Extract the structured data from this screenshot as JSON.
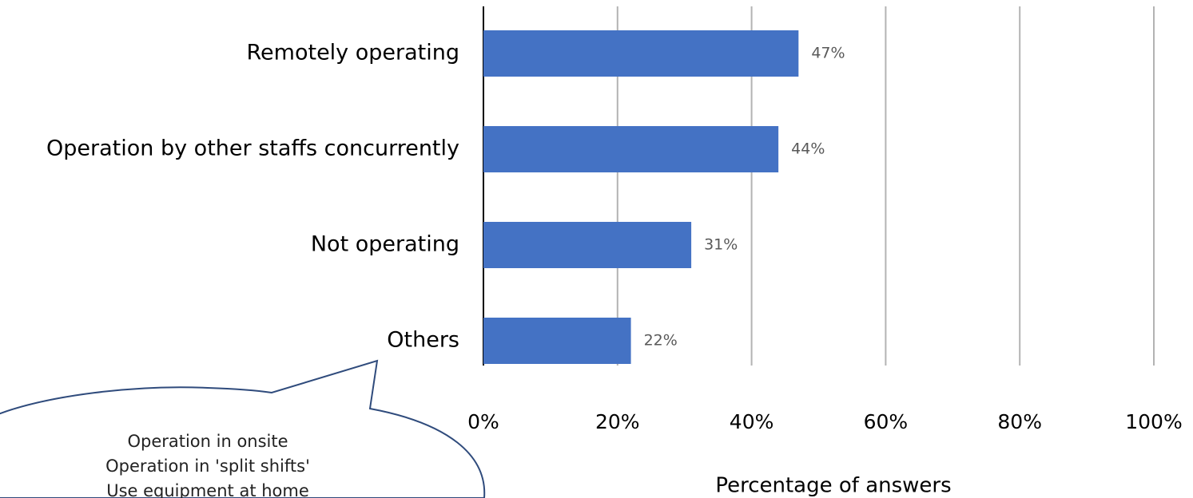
{
  "chart_data": {
    "type": "bar",
    "orientation": "horizontal",
    "categories": [
      "Remotely operating",
      "Operation by other staffs concurrently",
      "Not operating",
      "Others"
    ],
    "values": [
      47,
      44,
      31,
      22
    ],
    "value_labels": [
      "47%",
      "44%",
      "31%",
      "22%"
    ],
    "color": "#4472c4",
    "xlim": [
      0,
      100
    ],
    "xticks": [
      {
        "value": 0,
        "label": "0%"
      },
      {
        "value": 20,
        "label": "20%"
      },
      {
        "value": 40,
        "label": "40%"
      },
      {
        "value": 60,
        "label": "60%"
      },
      {
        "value": 80,
        "label": "80%"
      },
      {
        "value": 100,
        "label": "100%"
      }
    ],
    "grid": true,
    "xlabel": "Percentage of answers",
    "annotation": [
      "Operation in onsite",
      "Operation in 'split shifts'",
      "Use equipment at home"
    ]
  }
}
